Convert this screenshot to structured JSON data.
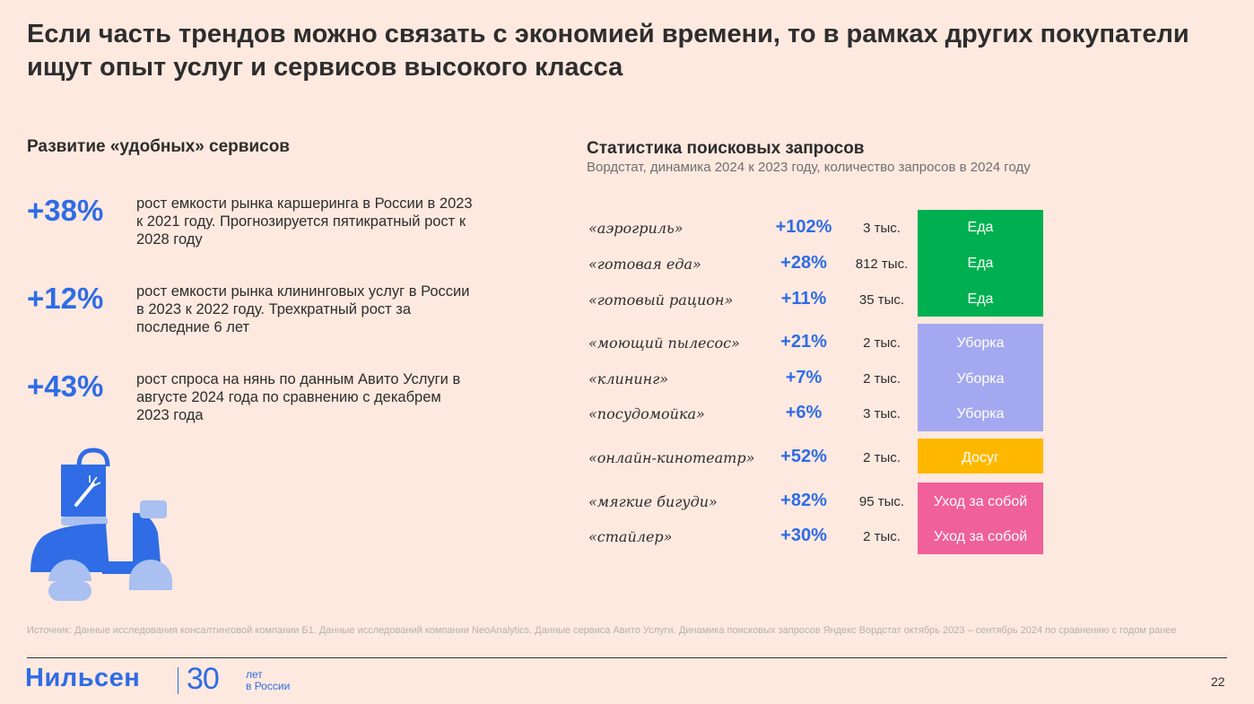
{
  "title": "Если часть трендов можно связать с экономией времени, то в рамках других покупатели ищут опыт услуг и сервисов высокого класса",
  "left": {
    "heading": "Развитие «удобных» сервисов",
    "stats": [
      {
        "pct": "+38%",
        "desc": "рост емкости рынка каршеринга в России в 2023 к 2021 году. Прогнозируется пятикратный рост к 2028 году"
      },
      {
        "pct": "+12%",
        "desc": "рост емкости рынка клининговых услуг в России в 2023 к 2022 году. Трехкратный рост за последние 6 лет"
      },
      {
        "pct": "+43%",
        "desc": "рост спроса на нянь по данным Авито Услуги в августе 2024 года по сравнению с декабрем 2023 года"
      }
    ]
  },
  "right": {
    "heading": "Статистика поисковых запросов",
    "subheading": "Вордстат, динамика 2024 к 2023 году, количество запросов в 2024 году",
    "rows": [
      {
        "query": "«аэрогриль»",
        "growth": "+102%",
        "count": "3 тыс."
      },
      {
        "query": "«готовая еда»",
        "growth": "+28%",
        "count": "812 тыс."
      },
      {
        "query": "«готовый рацион»",
        "growth": "+11%",
        "count": "35 тыс."
      },
      {
        "query": "«моющий пылесос»",
        "growth": "+21%",
        "count": "2 тыс."
      },
      {
        "query": "«клининг»",
        "growth": "+7%",
        "count": "2 тыс."
      },
      {
        "query": "«посудомойка»",
        "growth": "+6%",
        "count": "3 тыс."
      },
      {
        "query": "«онлайн-кинотеатр»",
        "growth": "+52%",
        "count": "2 тыс."
      },
      {
        "query": "«мягкие бигуди»",
        "growth": "+82%",
        "count": "95 тыс."
      },
      {
        "query": "«стайлер»",
        "growth": "+30%",
        "count": "2 тыс."
      }
    ],
    "categories": {
      "food": {
        "labels": [
          "Еда",
          "Еда",
          "Еда"
        ],
        "color": "#00b050"
      },
      "cleaning": {
        "labels": [
          "Уборка",
          "Уборка",
          "Уборка"
        ],
        "color": "#a3a8f0"
      },
      "leisure": {
        "labels": [
          "Досуг"
        ],
        "color": "#ffb800"
      },
      "selfcare": {
        "labels": [
          "Уход за собой",
          "Уход за собой"
        ],
        "color": "#f0609a"
      }
    }
  },
  "footer": {
    "source": "Источник: Данные исследования консалтинговой компании Б1. Данные исследований компании NeoAnalytics. Данные сервиса Авито Услуги. Динамика поисковых запросов Яндекс Вордстат октябрь 2023 – сентябрь 2024 по сравнению с годом ранее",
    "logo": "Нильсен",
    "logo_number": "30",
    "logo_sub1": "лет",
    "logo_sub2": "в России",
    "page_number": "22"
  },
  "colors": {
    "accent": "#2f6ce5",
    "background": "#fde9df"
  }
}
